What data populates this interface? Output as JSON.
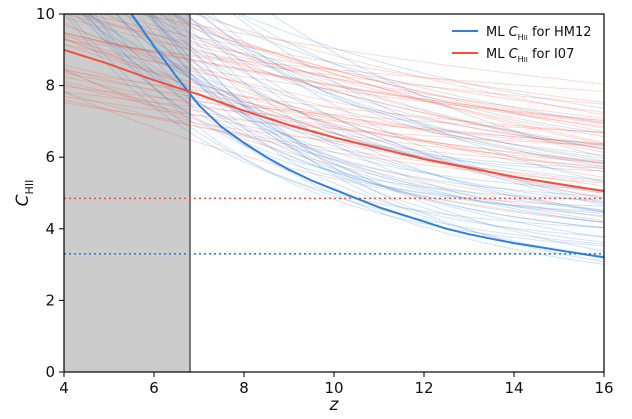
{
  "chart_data": {
    "type": "line",
    "title": "",
    "xlabel": "z",
    "ylabel_main": "C",
    "ylabel_sub": "HII",
    "xlim": [
      4,
      16
    ],
    "ylim": [
      0,
      10
    ],
    "xticks": [
      4,
      6,
      8,
      10,
      12,
      14,
      16
    ],
    "yticks": [
      0,
      2,
      4,
      6,
      8,
      10
    ],
    "grid": false,
    "legend_position": "top-right",
    "shaded_region": {
      "x_from": 4,
      "x_to": 6.8,
      "color": "#cccccc"
    },
    "colors": {
      "HM12": "#2f7fdc",
      "I07": "#f0503c"
    },
    "series": [
      {
        "name": "ML C_HII for HM12",
        "legend_prefix": "ML ",
        "legend_suffix": " for HM12",
        "color": "#2f7fdc",
        "x": [
          5.5,
          6,
          6.5,
          7,
          7.5,
          8,
          8.5,
          9,
          9.5,
          10,
          10.5,
          11,
          11.5,
          12,
          12.5,
          13,
          13.5,
          14,
          14.5,
          15,
          15.5,
          16
        ],
        "y": [
          10.0,
          9.1,
          8.25,
          7.45,
          6.85,
          6.4,
          6.0,
          5.65,
          5.35,
          5.1,
          4.85,
          4.6,
          4.4,
          4.2,
          4.0,
          3.85,
          3.72,
          3.6,
          3.5,
          3.4,
          3.3,
          3.2
        ]
      },
      {
        "name": "ML C_HII for I07",
        "legend_prefix": "ML ",
        "legend_suffix": " for I07",
        "color": "#f0503c",
        "x": [
          4,
          5,
          6,
          7,
          8,
          9,
          10,
          11,
          12,
          13,
          14,
          15,
          16
        ],
        "y": [
          9.0,
          8.6,
          8.15,
          7.75,
          7.3,
          6.9,
          6.55,
          6.25,
          5.95,
          5.7,
          5.45,
          5.25,
          5.05
        ]
      }
    ],
    "reference_lines": [
      {
        "series": "HM12",
        "y": 3.3,
        "style": "dotted",
        "color": "#2f7fdc"
      },
      {
        "series": "I07",
        "y": 4.85,
        "style": "dotted",
        "color": "#f0503c"
      }
    ]
  }
}
